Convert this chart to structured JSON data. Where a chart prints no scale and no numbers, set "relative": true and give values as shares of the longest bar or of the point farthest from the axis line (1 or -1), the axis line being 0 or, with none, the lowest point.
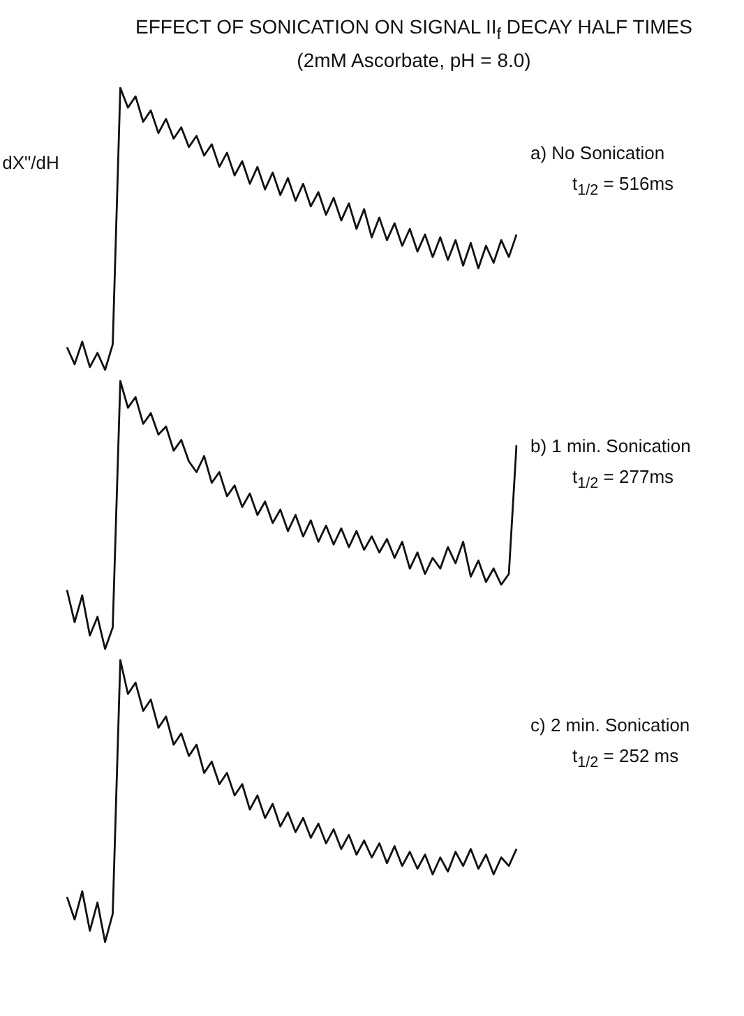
{
  "chart_data": [
    {
      "type": "line",
      "title": "EFFECT OF SONICATION ON SIGNAL II$_{f}$ DECAY HALF TIMES",
      "subtitle": "(2mM Ascorbate, pH = 8.0)",
      "ylabel": "dX\"/dH",
      "relative": true,
      "marker": "none",
      "annotations": [
        "a) No Sonication",
        "t$_{1/2}$ = 516ms"
      ],
      "categories": [
        null,
        null,
        null,
        null,
        null,
        null,
        null,
        null,
        null,
        null,
        null,
        null,
        null,
        null,
        null,
        null,
        null,
        null,
        null,
        null,
        null,
        null,
        null,
        null,
        null,
        null,
        null,
        null,
        null,
        null,
        null,
        null,
        null,
        null,
        null,
        null,
        null,
        null,
        null,
        null,
        null,
        null,
        null,
        null,
        null,
        null,
        null,
        null,
        null,
        null,
        null,
        null,
        null,
        null,
        null,
        null,
        null,
        null,
        null,
        null
      ],
      "series": [
        {
          "color": "#111111",
          "values": [
            0.08,
            0.02,
            0.1,
            0.01,
            0.06,
            0.0,
            0.09,
            1.0,
            0.93,
            0.97,
            0.88,
            0.92,
            0.84,
            0.89,
            0.82,
            0.86,
            0.79,
            0.83,
            0.76,
            0.8,
            0.72,
            0.77,
            0.69,
            0.74,
            0.66,
            0.72,
            0.64,
            0.7,
            0.62,
            0.68,
            0.6,
            0.66,
            0.58,
            0.63,
            0.55,
            0.61,
            0.53,
            0.59,
            0.5,
            0.57,
            0.47,
            0.54,
            0.46,
            0.52,
            0.44,
            0.5,
            0.42,
            0.48,
            0.4,
            0.47,
            0.39,
            0.46,
            0.37,
            0.45,
            0.36,
            0.44,
            0.38,
            0.46,
            0.4,
            0.48
          ]
        }
      ]
    },
    {
      "type": "line",
      "relative": true,
      "marker": "none",
      "annotations": [
        "b) 1 min. Sonication",
        "t$_{1/2}$ = 277ms"
      ],
      "categories": [
        null,
        null,
        null,
        null,
        null,
        null,
        null,
        null,
        null,
        null,
        null,
        null,
        null,
        null,
        null,
        null,
        null,
        null,
        null,
        null,
        null,
        null,
        null,
        null,
        null,
        null,
        null,
        null,
        null,
        null,
        null,
        null,
        null,
        null,
        null,
        null,
        null,
        null,
        null,
        null,
        null,
        null,
        null,
        null,
        null,
        null,
        null,
        null,
        null,
        null,
        null,
        null,
        null,
        null,
        null,
        null,
        null,
        null,
        null,
        null
      ],
      "series": [
        {
          "color": "#111111",
          "values": [
            0.22,
            0.1,
            0.2,
            0.05,
            0.12,
            0.0,
            0.08,
            1.0,
            0.9,
            0.94,
            0.84,
            0.88,
            0.8,
            0.83,
            0.74,
            0.78,
            0.7,
            0.66,
            0.72,
            0.62,
            0.66,
            0.57,
            0.61,
            0.53,
            0.58,
            0.5,
            0.55,
            0.47,
            0.52,
            0.44,
            0.5,
            0.42,
            0.48,
            0.4,
            0.46,
            0.39,
            0.45,
            0.38,
            0.44,
            0.37,
            0.42,
            0.36,
            0.41,
            0.34,
            0.4,
            0.3,
            0.36,
            0.28,
            0.34,
            0.3,
            0.38,
            0.32,
            0.4,
            0.27,
            0.33,
            0.25,
            0.3,
            0.24,
            0.28,
            0.76
          ]
        }
      ]
    },
    {
      "type": "line",
      "relative": true,
      "marker": "none",
      "annotations": [
        "c) 2 min. Sonication",
        "t$_{1/2}$ = 252 ms"
      ],
      "categories": [
        null,
        null,
        null,
        null,
        null,
        null,
        null,
        null,
        null,
        null,
        null,
        null,
        null,
        null,
        null,
        null,
        null,
        null,
        null,
        null,
        null,
        null,
        null,
        null,
        null,
        null,
        null,
        null,
        null,
        null,
        null,
        null,
        null,
        null,
        null,
        null,
        null,
        null,
        null,
        null,
        null,
        null,
        null,
        null,
        null,
        null,
        null,
        null,
        null,
        null,
        null,
        null,
        null,
        null,
        null,
        null,
        null,
        null,
        null,
        null
      ],
      "series": [
        {
          "color": "#111111",
          "values": [
            0.16,
            0.08,
            0.18,
            0.04,
            0.14,
            0.0,
            0.1,
            1.0,
            0.88,
            0.92,
            0.82,
            0.86,
            0.76,
            0.8,
            0.7,
            0.74,
            0.66,
            0.7,
            0.6,
            0.64,
            0.56,
            0.6,
            0.52,
            0.56,
            0.47,
            0.52,
            0.44,
            0.49,
            0.41,
            0.46,
            0.39,
            0.44,
            0.37,
            0.42,
            0.35,
            0.4,
            0.33,
            0.38,
            0.31,
            0.36,
            0.3,
            0.35,
            0.28,
            0.34,
            0.27,
            0.32,
            0.26,
            0.31,
            0.24,
            0.3,
            0.25,
            0.32,
            0.27,
            0.33,
            0.26,
            0.31,
            0.24,
            0.3,
            0.27,
            0.33
          ]
        }
      ]
    }
  ]
}
